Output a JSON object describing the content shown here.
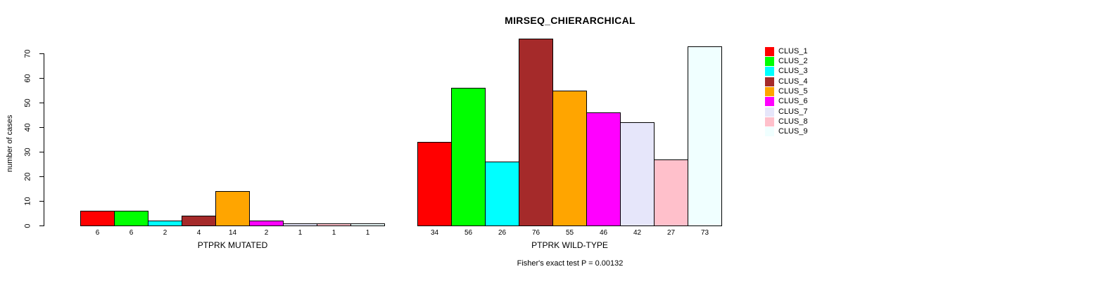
{
  "chart_data": {
    "type": "bar",
    "title": "MIRSEQ_CHIERARCHICAL",
    "ylabel": "number of cases",
    "caption": "Fisher's exact test P = 0.00132",
    "ylim": [
      0,
      76
    ],
    "yticks": [
      0,
      10,
      20,
      30,
      40,
      50,
      60,
      70
    ],
    "grid": false,
    "legend_position": "right-inside",
    "axis_color": "#000000",
    "background_color": "#ffffff",
    "clusters": [
      {
        "name": "CLUS_1",
        "color": "#FF0000"
      },
      {
        "name": "CLUS_2",
        "color": "#00FF00"
      },
      {
        "name": "CLUS_3",
        "color": "#00FFFF"
      },
      {
        "name": "CLUS_4",
        "color": "#A52A2A"
      },
      {
        "name": "CLUS_5",
        "color": "#FFA500"
      },
      {
        "name": "CLUS_6",
        "color": "#FF00FF"
      },
      {
        "name": "CLUS_7",
        "color": "#E6E6FA"
      },
      {
        "name": "CLUS_8",
        "color": "#FFC0CB"
      },
      {
        "name": "CLUS_9",
        "color": "#F0FFFF"
      }
    ],
    "groups": [
      {
        "label": "PTPRK MUTATED",
        "values": [
          6,
          6,
          2,
          4,
          14,
          2,
          1,
          1,
          1
        ]
      },
      {
        "label": "PTPRK WILD-TYPE",
        "values": [
          34,
          56,
          26,
          76,
          55,
          46,
          42,
          27,
          73
        ]
      }
    ]
  }
}
